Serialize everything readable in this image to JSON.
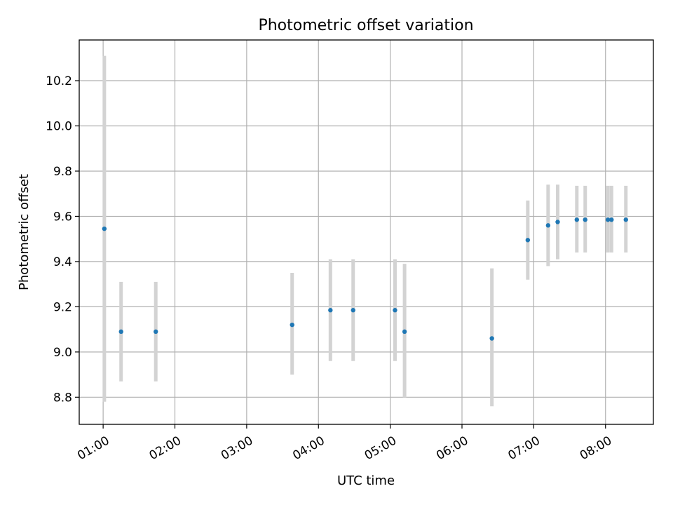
{
  "chart_data": {
    "type": "scatter",
    "title": "Photometric offset variation",
    "xlabel": "UTC time",
    "ylabel": "Photometric offset",
    "x_axis": "time (HH:MM)",
    "xlim": [
      "00:40",
      "08:40"
    ],
    "ylim": [
      8.68,
      10.38
    ],
    "x_ticks": [
      "01:00",
      "02:00",
      "03:00",
      "04:00",
      "05:00",
      "06:00",
      "07:00",
      "08:00"
    ],
    "y_ticks": [
      8.8,
      9.0,
      9.2,
      9.4,
      9.6,
      9.8,
      10.0,
      10.2
    ],
    "y_tick_labels": [
      "8.8",
      "9.0",
      "9.2",
      "9.4",
      "9.6",
      "9.8",
      "10.0",
      "10.2"
    ],
    "grid": true,
    "point_color": "#1f77b4",
    "errorbar_color": "#d3d3d3",
    "points": [
      {
        "time": "01:01",
        "y": 9.545,
        "low": 8.78,
        "high": 10.31
      },
      {
        "time": "01:15",
        "y": 9.09,
        "low": 8.87,
        "high": 9.31
      },
      {
        "time": "01:44",
        "y": 9.09,
        "low": 8.87,
        "high": 9.31
      },
      {
        "time": "03:38",
        "y": 9.12,
        "low": 8.9,
        "high": 9.35
      },
      {
        "time": "04:10",
        "y": 9.185,
        "low": 8.96,
        "high": 9.41
      },
      {
        "time": "04:29",
        "y": 9.185,
        "low": 8.96,
        "high": 9.41
      },
      {
        "time": "05:04",
        "y": 9.185,
        "low": 8.96,
        "high": 9.41
      },
      {
        "time": "05:12",
        "y": 9.09,
        "low": 8.8,
        "high": 9.39
      },
      {
        "time": "06:25",
        "y": 9.06,
        "low": 8.76,
        "high": 9.37
      },
      {
        "time": "06:55",
        "y": 9.495,
        "low": 9.32,
        "high": 9.67
      },
      {
        "time": "07:12",
        "y": 9.56,
        "low": 9.38,
        "high": 9.74
      },
      {
        "time": "07:20",
        "y": 9.575,
        "low": 9.41,
        "high": 9.74
      },
      {
        "time": "07:36",
        "y": 9.585,
        "low": 9.44,
        "high": 9.735
      },
      {
        "time": "07:43",
        "y": 9.585,
        "low": 9.44,
        "high": 9.735
      },
      {
        "time": "08:02",
        "y": 9.585,
        "low": 9.44,
        "high": 9.735
      },
      {
        "time": "08:05",
        "y": 9.585,
        "low": 9.44,
        "high": 9.735
      },
      {
        "time": "08:17",
        "y": 9.585,
        "low": 9.44,
        "high": 9.735
      }
    ]
  }
}
